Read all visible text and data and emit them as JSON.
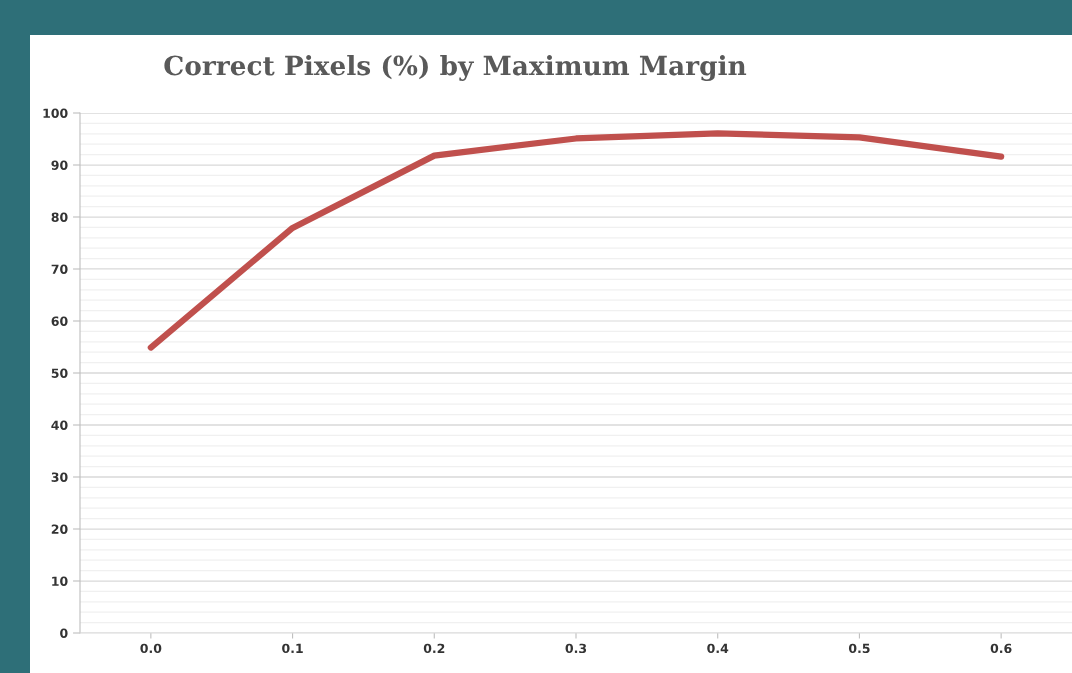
{
  "chart_data": {
    "type": "line",
    "title": "Correct Pixels (%) by Maximum Margin",
    "categories": [
      "0.0",
      "0.1",
      "0.2",
      "0.3",
      "0.4",
      "0.5",
      "0.6"
    ],
    "series": [
      {
        "color": "#c0504d",
        "values": [
          54.9,
          77.9,
          91.8,
          95.1,
          96.1,
          95.3,
          91.6
        ]
      }
    ],
    "ylim": [
      0,
      100
    ],
    "yticks": [
      0,
      {
        "value": 2,
        "label": null
      },
      {
        "value": 4,
        "label": null
      },
      {
        "value": 6,
        "label": null
      },
      {
        "value": 8,
        "label": null
      },
      10,
      {
        "value": 12,
        "label": null
      },
      {
        "value": 14,
        "label": null
      },
      {
        "value": 16,
        "label": null
      },
      {
        "value": 18,
        "label": null
      },
      20,
      {
        "value": 22,
        "label": null
      },
      {
        "value": 24,
        "label": null
      },
      {
        "value": 26,
        "label": null
      },
      {
        "value": 28,
        "label": null
      },
      30,
      {
        "value": 32,
        "label": null
      },
      {
        "value": 34,
        "label": null
      },
      {
        "value": 36,
        "label": null
      },
      {
        "value": 38,
        "label": null
      },
      40,
      {
        "value": 42,
        "label": null
      },
      {
        "value": 44,
        "label": null
      },
      {
        "value": 46,
        "label": null
      },
      {
        "value": 48,
        "label": null
      },
      50,
      {
        "value": 52,
        "label": null
      },
      {
        "value": 54,
        "label": null
      },
      {
        "value": 56,
        "label": null
      },
      {
        "value": 58,
        "label": null
      },
      60,
      {
        "value": 62,
        "label": null
      },
      {
        "value": 64,
        "label": null
      },
      {
        "value": 66,
        "label": null
      },
      {
        "value": 68,
        "label": null
      },
      70,
      {
        "value": 72,
        "label": null
      },
      {
        "value": 74,
        "label": null
      },
      {
        "value": 76,
        "label": null
      },
      {
        "value": 78,
        "label": null
      },
      80,
      {
        "value": 82,
        "label": null
      },
      {
        "value": 84,
        "label": null
      },
      {
        "value": 86,
        "label": null
      },
      {
        "value": 88,
        "label": null
      },
      90,
      {
        "value": 92,
        "label": null
      },
      {
        "value": 94,
        "label": null
      },
      {
        "value": 96,
        "label": null
      },
      {
        "value": 98,
        "label": null
      },
      100
    ],
    "grid": "y",
    "marker": "none",
    "line_style": "solid"
  }
}
